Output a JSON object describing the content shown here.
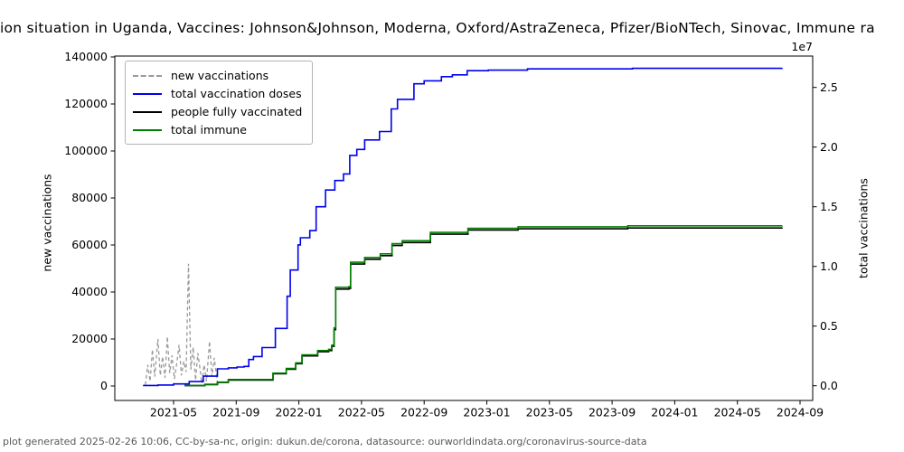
{
  "title": "ion situation in Uganda, Vaccines: Johnson&Johnson, Moderna, Oxford/AstraZeneca, Pfizer/BioNTech, Sinovac, Immune ra",
  "footer": {
    "text": "plot generated 2025-02-26 10:06, CC-by-sa-nc, origin: dukun.de/corona, datasource: ourworldindata.org/coronavirus-source-data"
  },
  "axes": {
    "left_label": "new vaccinations",
    "right_label": "total vaccinations",
    "right_offset_text": "1e7",
    "left_ticks": [
      {
        "v": 0,
        "label": "0"
      },
      {
        "v": 20000,
        "label": "20000"
      },
      {
        "v": 40000,
        "label": "40000"
      },
      {
        "v": 60000,
        "label": "60000"
      },
      {
        "v": 80000,
        "label": "80000"
      },
      {
        "v": 100000,
        "label": "100000"
      },
      {
        "v": 120000,
        "label": "120000"
      },
      {
        "v": 140000,
        "label": "140000"
      }
    ],
    "right_ticks": [
      {
        "v": 0,
        "label": "0.0"
      },
      {
        "v": 5,
        "label": "0.5"
      },
      {
        "v": 10,
        "label": "1.0"
      },
      {
        "v": 15,
        "label": "1.5"
      },
      {
        "v": 20,
        "label": "2.0"
      },
      {
        "v": 25,
        "label": "2.5"
      }
    ],
    "x_ticks": [
      {
        "m": 4,
        "label": "2021-05"
      },
      {
        "m": 8,
        "label": "2021-09"
      },
      {
        "m": 12,
        "label": "2022-01"
      },
      {
        "m": 16,
        "label": "2022-05"
      },
      {
        "m": 20,
        "label": "2022-09"
      },
      {
        "m": 24,
        "label": "2023-01"
      },
      {
        "m": 28,
        "label": "2023-05"
      },
      {
        "m": 32,
        "label": "2023-09"
      },
      {
        "m": 36,
        "label": "2024-01"
      },
      {
        "m": 40,
        "label": "2024-05"
      },
      {
        "m": 44,
        "label": "2024-09"
      }
    ]
  },
  "legend": {
    "items": [
      {
        "label": "new vaccinations",
        "color": "#999999",
        "dash": true
      },
      {
        "label": "total vaccination doses",
        "color": "#0000ee",
        "dash": false
      },
      {
        "label": "people fully vaccinated",
        "color": "#000000",
        "dash": false
      },
      {
        "label": "total immune",
        "color": "#008000",
        "dash": false
      }
    ]
  },
  "chart_data": {
    "type": "line",
    "x_unit": "months since 2021-01-01",
    "x_range_months": [
      0.25,
      44.8
    ],
    "left_ylim": [
      0,
      140000
    ],
    "right_ylim_1e7": [
      0,
      2.76
    ],
    "grid": false,
    "legend_position": "upper left",
    "series": [
      {
        "name": "new vaccinations",
        "axis": "left",
        "color": "#999999",
        "dash": true,
        "step": false,
        "points": [
          [
            2.2,
            500
          ],
          [
            2.35,
            9000
          ],
          [
            2.5,
            2000
          ],
          [
            2.65,
            15500
          ],
          [
            2.8,
            4000
          ],
          [
            3.0,
            20000
          ],
          [
            3.15,
            4500
          ],
          [
            3.3,
            12500
          ],
          [
            3.45,
            3500
          ],
          [
            3.6,
            21000
          ],
          [
            3.75,
            5500
          ],
          [
            3.9,
            13000
          ],
          [
            4.05,
            3000
          ],
          [
            4.2,
            9500
          ],
          [
            4.35,
            17500
          ],
          [
            4.5,
            4500
          ],
          [
            4.65,
            10500
          ],
          [
            4.8,
            6000
          ],
          [
            4.95,
            52000
          ],
          [
            5.1,
            7000
          ],
          [
            5.25,
            16500
          ],
          [
            5.4,
            2500
          ],
          [
            5.55,
            14000
          ],
          [
            5.7,
            6500
          ],
          [
            5.8,
            1200
          ],
          [
            5.95,
            9000
          ],
          [
            6.1,
            2000
          ],
          [
            6.3,
            19000
          ],
          [
            6.45,
            4000
          ],
          [
            6.6,
            12000
          ],
          [
            6.8,
            1500
          ],
          [
            6.95,
            800
          ]
        ]
      },
      {
        "name": "total vaccination doses",
        "axis": "right",
        "color": "#0000ee",
        "dash": false,
        "step": true,
        "points": [
          [
            2.05,
            0.02
          ],
          [
            3.0,
            0.06
          ],
          [
            4.0,
            0.15
          ],
          [
            5.0,
            0.35
          ],
          [
            5.9,
            0.8
          ],
          [
            6.8,
            1.42
          ],
          [
            7.5,
            1.5
          ],
          [
            8.05,
            1.57
          ],
          [
            8.5,
            1.62
          ],
          [
            8.8,
            2.2
          ],
          [
            9.1,
            2.45
          ],
          [
            9.65,
            3.2
          ],
          [
            10.5,
            4.8
          ],
          [
            11.25,
            7.5
          ],
          [
            11.45,
            9.7
          ],
          [
            11.95,
            11.8
          ],
          [
            12.1,
            12.4
          ],
          [
            12.7,
            13.0
          ],
          [
            13.1,
            15.0
          ],
          [
            13.7,
            16.4
          ],
          [
            14.3,
            17.2
          ],
          [
            14.85,
            17.75
          ],
          [
            15.25,
            19.3
          ],
          [
            15.7,
            19.8
          ],
          [
            16.2,
            20.6
          ],
          [
            17.15,
            21.3
          ],
          [
            17.9,
            23.2
          ],
          [
            18.3,
            24.0
          ],
          [
            19.35,
            25.3
          ],
          [
            20.0,
            25.55
          ],
          [
            21.1,
            25.9
          ],
          [
            21.8,
            26.05
          ],
          [
            22.75,
            26.4
          ],
          [
            24.1,
            26.45
          ],
          [
            26.6,
            26.55
          ],
          [
            33.3,
            26.6
          ],
          [
            42.85,
            26.62
          ]
        ]
      },
      {
        "name": "people fully vaccinated",
        "axis": "right",
        "color": "#000000",
        "dash": false,
        "step": true,
        "points": [
          [
            4.7,
            0.01
          ],
          [
            6.0,
            0.1
          ],
          [
            6.8,
            0.27
          ],
          [
            7.5,
            0.48
          ],
          [
            10.35,
            1.0
          ],
          [
            11.2,
            1.38
          ],
          [
            11.8,
            1.85
          ],
          [
            12.2,
            2.5
          ],
          [
            13.2,
            2.85
          ],
          [
            13.9,
            2.95
          ],
          [
            14.1,
            3.3
          ],
          [
            14.25,
            4.7
          ],
          [
            14.35,
            8.1
          ],
          [
            15.2,
            8.15
          ],
          [
            15.3,
            10.2
          ],
          [
            16.2,
            10.6
          ],
          [
            17.2,
            10.9
          ],
          [
            17.95,
            11.75
          ],
          [
            18.6,
            12.0
          ],
          [
            20.4,
            12.7
          ],
          [
            22.8,
            13.05
          ],
          [
            26.0,
            13.15
          ],
          [
            33.0,
            13.22
          ],
          [
            42.85,
            13.25
          ]
        ]
      },
      {
        "name": "total immune",
        "axis": "right",
        "color": "#008000",
        "dash": false,
        "step": true,
        "points": [
          [
            4.7,
            0.02
          ],
          [
            6.0,
            0.12
          ],
          [
            6.8,
            0.3
          ],
          [
            7.5,
            0.52
          ],
          [
            10.35,
            1.05
          ],
          [
            11.2,
            1.45
          ],
          [
            11.8,
            1.92
          ],
          [
            12.2,
            2.58
          ],
          [
            13.2,
            2.95
          ],
          [
            13.9,
            3.05
          ],
          [
            14.1,
            3.4
          ],
          [
            14.25,
            4.85
          ],
          [
            14.35,
            8.25
          ],
          [
            15.2,
            8.3
          ],
          [
            15.3,
            10.35
          ],
          [
            16.2,
            10.75
          ],
          [
            17.2,
            11.05
          ],
          [
            17.95,
            11.9
          ],
          [
            18.6,
            12.15
          ],
          [
            20.4,
            12.85
          ],
          [
            22.8,
            13.2
          ],
          [
            26.0,
            13.32
          ],
          [
            33.0,
            13.4
          ],
          [
            42.85,
            13.42
          ]
        ]
      }
    ]
  }
}
